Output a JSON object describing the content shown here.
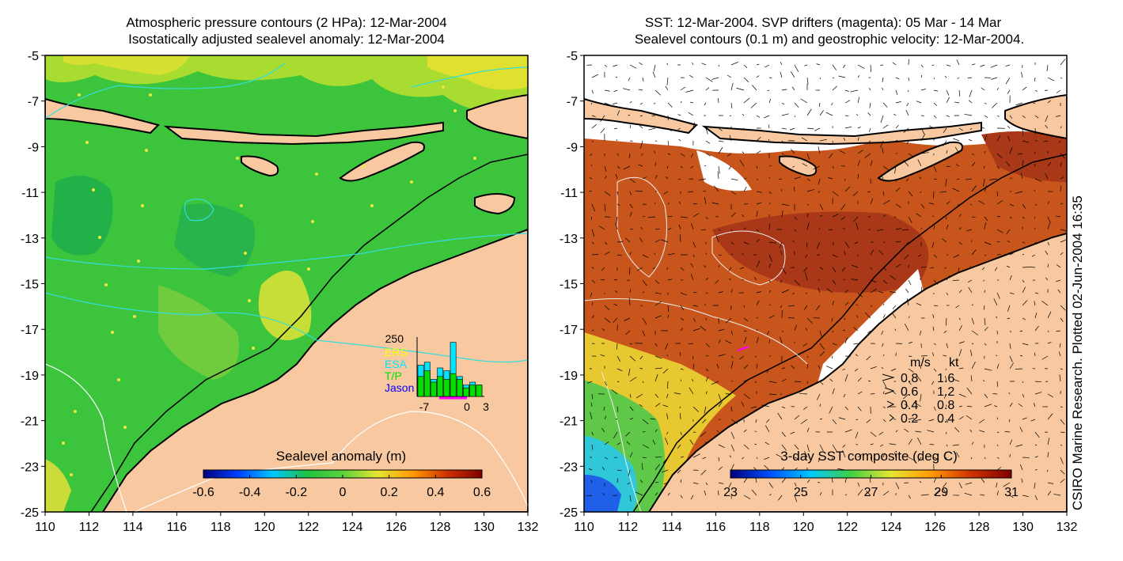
{
  "left_panel": {
    "title_line1": "Atmospheric pressure contours (2 HPa): 12-Mar-2004",
    "title_line2": "Isostatically adjusted sealevel anomaly: 12-Mar-2004",
    "colorbar": {
      "label": "Sealevel anomaly (m)",
      "ticks": [
        "-0.6",
        "-0.4",
        "-0.2",
        "0",
        "0.2",
        "0.4",
        "0.6"
      ],
      "palette": [
        "#00007f",
        "#0040ff",
        "#00c8ff",
        "#20c040",
        "#5ad23c",
        "#e6e632",
        "#ff9a00",
        "#d03000",
        "#7f0000"
      ]
    },
    "inset": {
      "ymax_label": "250",
      "legend": [
        "ERS",
        "ESA",
        "T/P",
        "Jason"
      ],
      "legend_colors": [
        "#ffff00",
        "#00e5ff",
        "#00e000",
        "#0000ff"
      ],
      "x_ticks": [
        "-7",
        "0",
        "3"
      ],
      "cyan_bars": [
        0.55,
        0.6,
        0.3,
        0.5,
        0.45,
        0.95,
        0.35,
        0.2,
        0.25,
        0.2
      ],
      "green_bars": [
        0.35,
        0.45,
        0.25,
        0.35,
        0.3,
        0.4,
        0.3,
        0.15,
        0.2,
        0.2
      ]
    }
  },
  "right_panel": {
    "title_line1": "SST: 12-Mar-2004. SVP drifters (magenta): 05 Mar - 14 Mar",
    "title_line2": "Sealevel contours (0.1 m) and geostrophic velocity: 12-Mar-2004.",
    "colorbar": {
      "label": "3-day SST composite (deg C)",
      "ticks": [
        "23",
        "25",
        "27",
        "29",
        "31"
      ],
      "palette": [
        "#00007f",
        "#0050ff",
        "#00c8ff",
        "#40d040",
        "#e6e632",
        "#ff9a00",
        "#d03000",
        "#7f0000"
      ]
    },
    "velocity_legend": {
      "header_ms": "m/s",
      "header_kt": "kt",
      "rows": [
        {
          "ms": "0.8",
          "kt": "1.6"
        },
        {
          "ms": "0.6",
          "kt": "1.2"
        },
        {
          "ms": "0.4",
          "kt": "0.8"
        },
        {
          "ms": "0.2",
          "kt": "0.4"
        }
      ]
    }
  },
  "axes": {
    "x_ticks": [
      "110",
      "112",
      "114",
      "116",
      "118",
      "120",
      "122",
      "124",
      "126",
      "128",
      "130",
      "132"
    ],
    "y_ticks": [
      "-5",
      "-7",
      "-9",
      "-11",
      "-13",
      "-15",
      "-17",
      "-19",
      "-21",
      "-23",
      "-25"
    ],
    "xlim": [
      110,
      132
    ],
    "ylim": [
      -25,
      -5
    ]
  },
  "side_credit": "CSIRO Marine Research. Plotted 02-Jun-2004 16:35",
  "colors": {
    "land": "#f8c9a0",
    "ocean_sla": "#3cc43c",
    "ocean_sst": "#c8561c",
    "contour_cyan": "#33dddd"
  }
}
